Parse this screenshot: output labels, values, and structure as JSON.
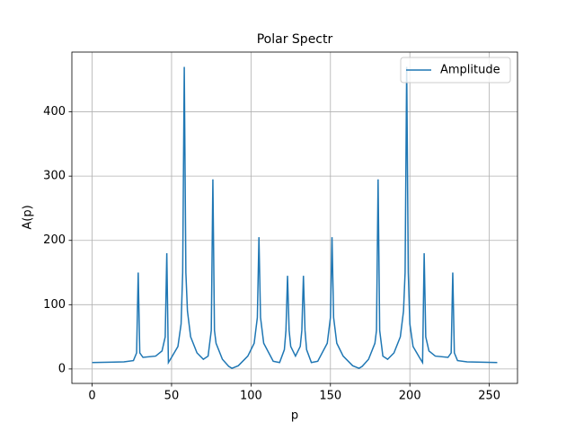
{
  "chart_data": {
    "type": "line",
    "title": "Polar Spectr",
    "x_label": "p",
    "y_label": "A(p)",
    "x": [
      0,
      20,
      26,
      28,
      29,
      30,
      32,
      40,
      44,
      46,
      47,
      48,
      50,
      54,
      56,
      57,
      58,
      59,
      60,
      62,
      66,
      70,
      73,
      75,
      76,
      77,
      78,
      82,
      86,
      88,
      92,
      98,
      102,
      104,
      105,
      106,
      108,
      114,
      118,
      121,
      122,
      123,
      124,
      125,
      128,
      131,
      132,
      133,
      134,
      135,
      138,
      142,
      148,
      150,
      151,
      152,
      154,
      158,
      164,
      168,
      170,
      174,
      178,
      179,
      180,
      181,
      183,
      186,
      190,
      194,
      196,
      197,
      198,
      199,
      200,
      202,
      206,
      208,
      209,
      210,
      212,
      216,
      224,
      226,
      227,
      228,
      230,
      236,
      255
    ],
    "series": [
      {
        "name": "Amplitude",
        "color": "#1f77b4",
        "values": [
          10,
          11,
          13,
          25,
          150,
          25,
          18,
          20,
          28,
          50,
          180,
          10,
          18,
          35,
          70,
          150,
          470,
          150,
          90,
          50,
          25,
          15,
          20,
          60,
          295,
          60,
          40,
          15,
          4,
          1,
          5,
          20,
          40,
          80,
          205,
          80,
          40,
          12,
          10,
          30,
          60,
          145,
          60,
          35,
          20,
          35,
          60,
          145,
          60,
          30,
          10,
          12,
          40,
          80,
          205,
          80,
          40,
          20,
          5,
          1,
          4,
          15,
          40,
          60,
          295,
          60,
          20,
          15,
          25,
          50,
          90,
          150,
          470,
          150,
          70,
          35,
          18,
          10,
          180,
          50,
          28,
          20,
          18,
          25,
          150,
          25,
          13,
          11,
          10
        ]
      }
    ],
    "xlim": [
      -12.75,
      267.75
    ],
    "ylim": [
      -22.5,
      493
    ],
    "xticks": [
      0,
      50,
      100,
      150,
      200,
      250
    ],
    "yticks": [
      0,
      100,
      200,
      300,
      400
    ],
    "grid": true,
    "legend": "upper right"
  }
}
